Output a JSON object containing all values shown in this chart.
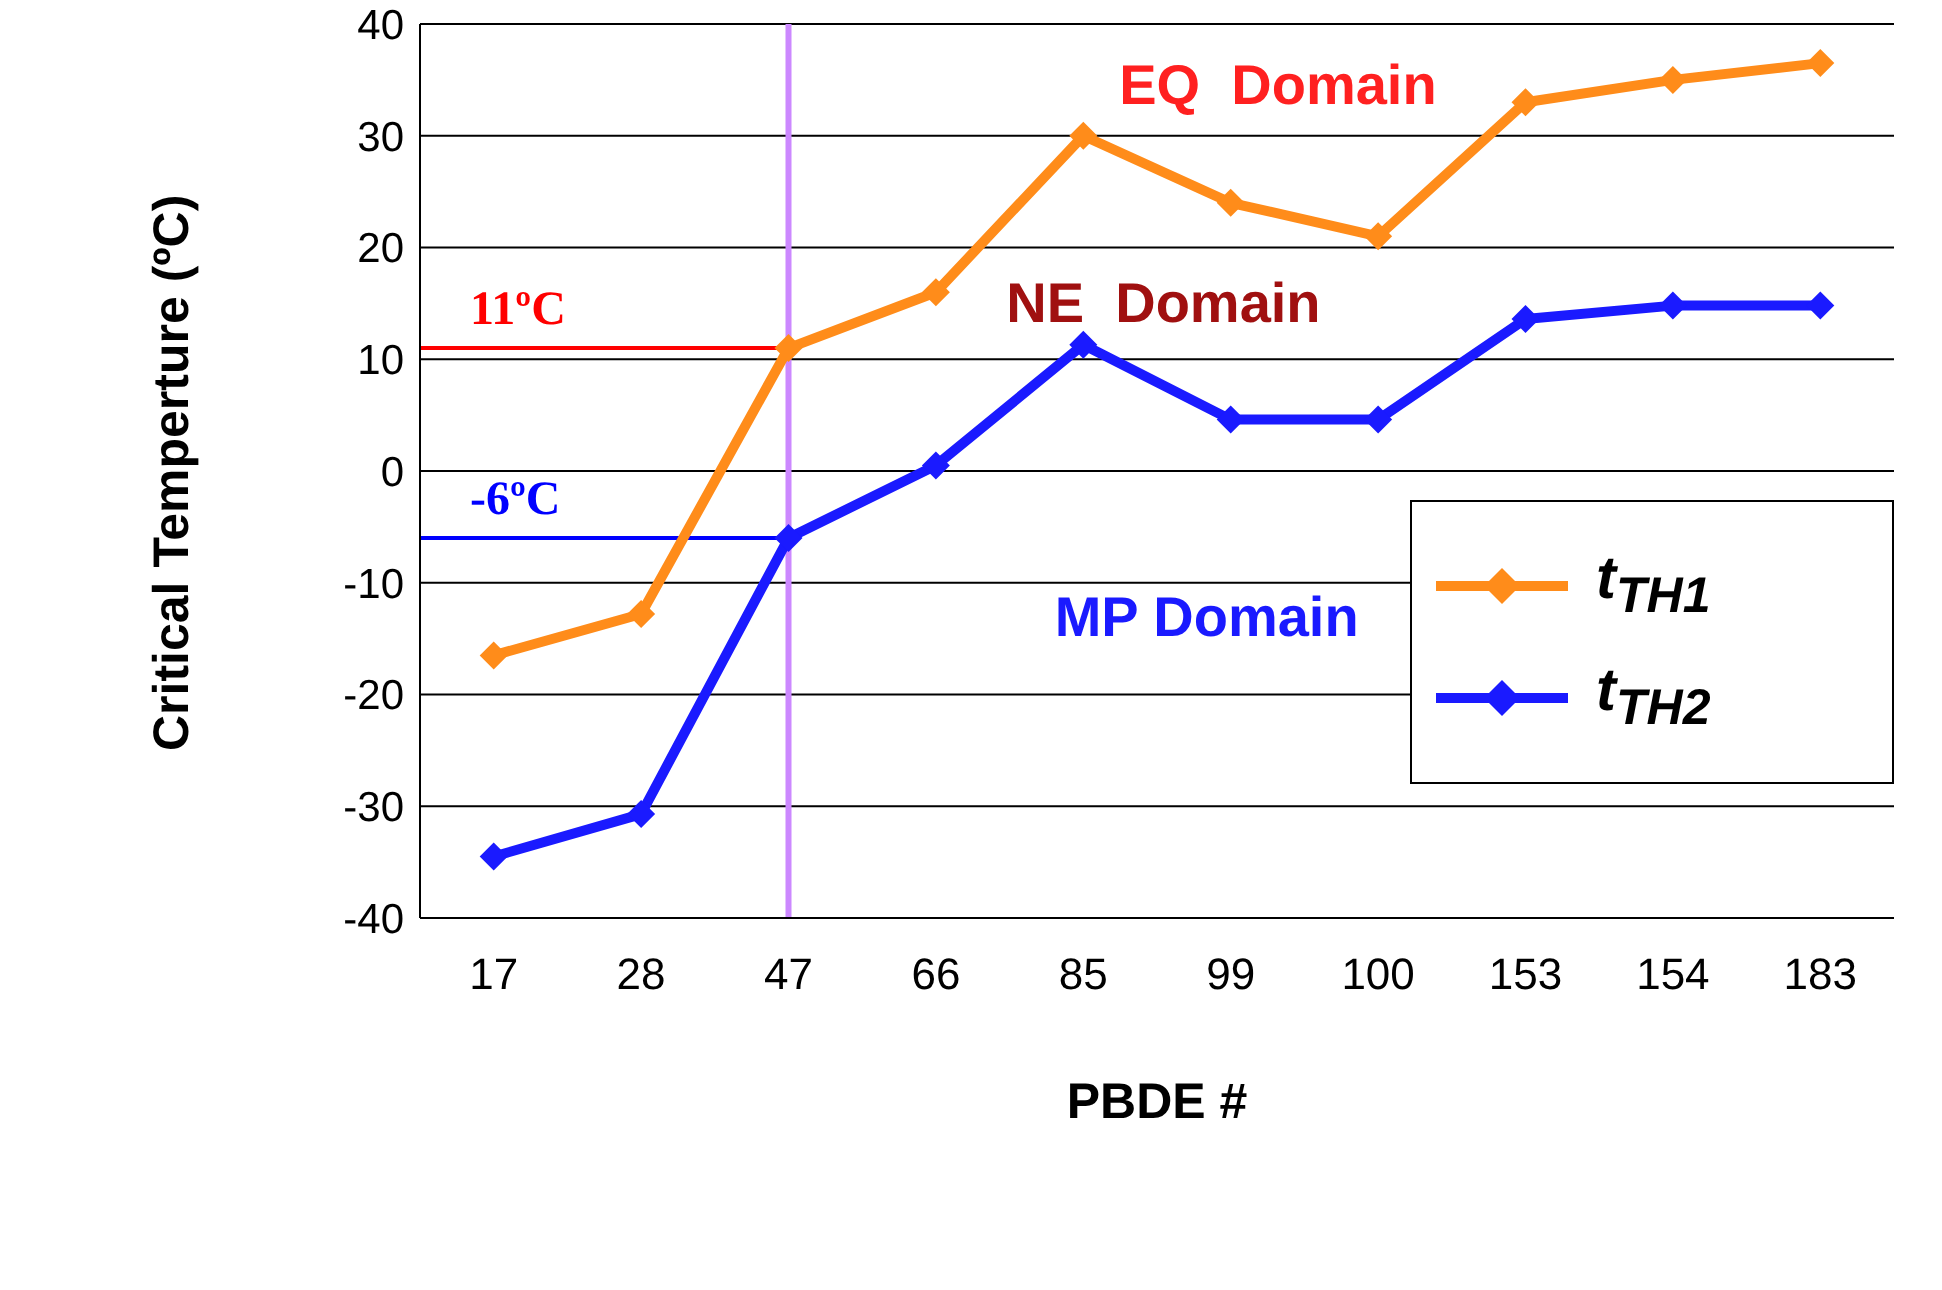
{
  "chart_data": {
    "type": "line",
    "xlabel": "PBDE #",
    "ylabel": "Critical Temperture (ºC)",
    "categories": [
      "17",
      "28",
      "47",
      "66",
      "85",
      "99",
      "100",
      "153",
      "154",
      "183"
    ],
    "series": [
      {
        "name": "t$_{TH1}$",
        "color": "#ff8c1a",
        "values": [
          -16.5,
          -12.8,
          11,
          16,
          30,
          24,
          21,
          33,
          35,
          36.5
        ]
      },
      {
        "name": "t$_{TH2}$",
        "color": "#1a1aff",
        "values": [
          -34.5,
          -30.7,
          -6,
          0.5,
          11.3,
          4.6,
          4.6,
          13.6,
          14.8,
          14.8
        ]
      }
    ],
    "ylim": [
      -40,
      40
    ],
    "yticks": [
      -40,
      -30,
      -20,
      -10,
      0,
      10,
      20,
      30,
      40
    ],
    "grid": "y",
    "legend": "right",
    "marker": "diamond",
    "line_style": "solid",
    "ref_lines": [
      {
        "axis": "y",
        "value": 11,
        "label": "11ºC",
        "color": "#ff0000"
      },
      {
        "axis": "y",
        "value": -6,
        "label": "-6ºC",
        "color": "#0000ff"
      },
      {
        "axis": "x",
        "value": "47",
        "color": "#cc88ff"
      }
    ],
    "annotations": [
      "EQ  Domain",
      "NE  Domain",
      "MP Domain"
    ]
  }
}
